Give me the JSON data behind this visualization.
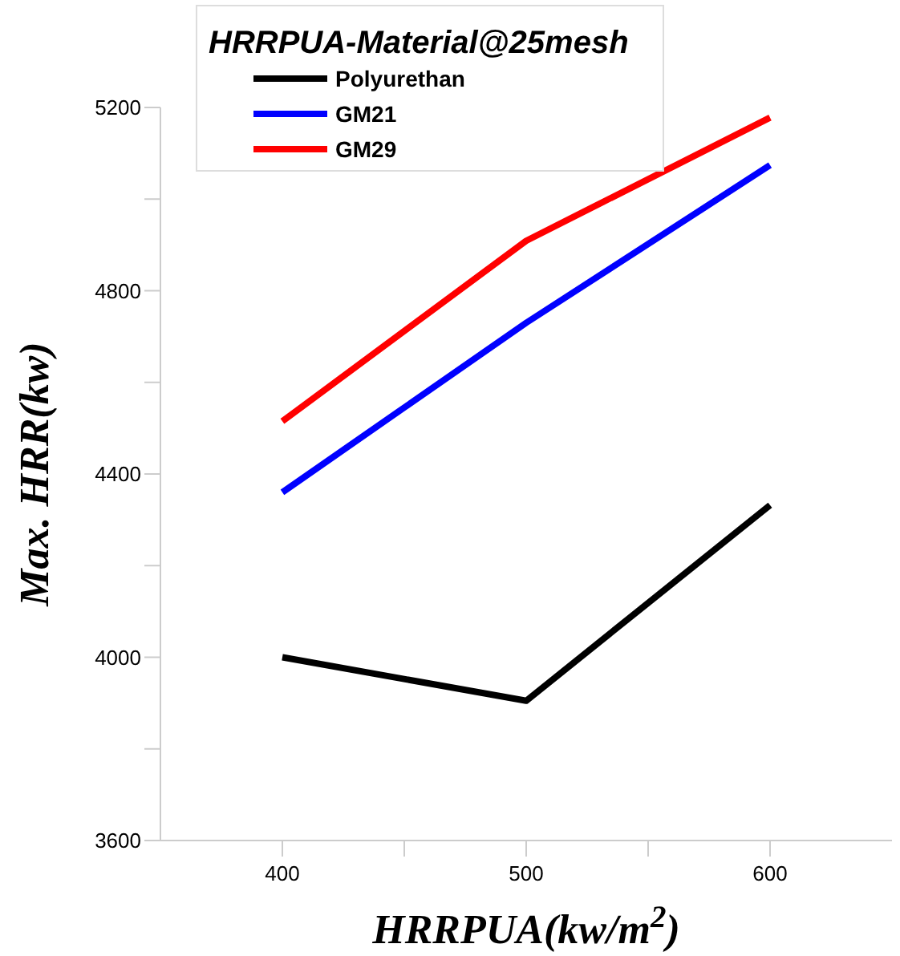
{
  "chart_data": {
    "type": "line",
    "xlabel": "HRRPUA(kw/m$^{2}$)",
    "ylabel": "Max. HRR(kw)",
    "legend_title": "HRRPUA-Material@25mesh",
    "x": [
      400,
      500,
      600
    ],
    "series": [
      {
        "name": "Polyurethan",
        "color": "#000000",
        "values": [
          4000,
          3905,
          4332
        ]
      },
      {
        "name": "GM21",
        "color": "#0000ff",
        "values": [
          4360,
          4730,
          5074
        ]
      },
      {
        "name": "GM29",
        "color": "#ff0000",
        "values": [
          4515,
          4909,
          5178
        ]
      }
    ],
    "xlim": [
      350,
      650
    ],
    "xticks": [
      400,
      {
        "value": 450,
        "label": null
      },
      500,
      {
        "value": 550,
        "label": null
      },
      600
    ],
    "ylim": [
      3600,
      5200
    ],
    "yticks": [
      3600,
      {
        "value": 3800,
        "label": null
      },
      4000,
      {
        "value": 4200,
        "label": null
      },
      4400,
      {
        "value": 4600,
        "label": null
      },
      4800,
      {
        "value": 5000,
        "label": null
      },
      5200
    ],
    "grid": false,
    "legend": "top left",
    "marker": "none",
    "line_style": "solid"
  }
}
